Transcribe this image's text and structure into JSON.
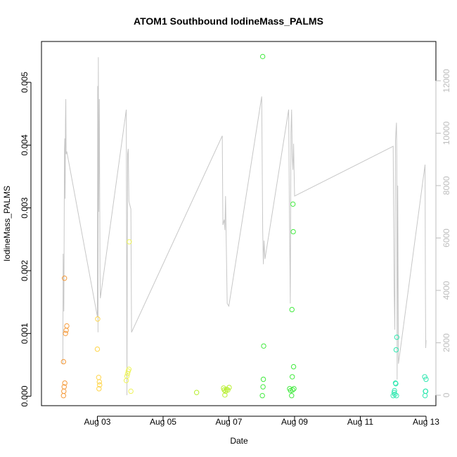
{
  "chart_data": {
    "type": "scatter",
    "title": "ATOM1 Southbound IodineMass_PALMS",
    "xlabel": "Date",
    "ylabel": "IodineMass_PALMS",
    "x_tick_labels": [
      "Aug 03",
      "Aug 05",
      "Aug 07",
      "Aug 09",
      "Aug 11",
      "Aug 13"
    ],
    "x_tick_values": [
      3,
      5,
      7,
      9,
      11,
      13
    ],
    "y_tick_labels": [
      "0.000",
      "0.001",
      "0.002",
      "0.003",
      "0.004",
      "0.005"
    ],
    "y_tick_values": [
      0,
      0.001,
      0.002,
      0.003,
      0.004,
      0.005
    ],
    "right_axis_tick_labels": [
      "0",
      "2000",
      "4000",
      "6000",
      "8000",
      "10000",
      "12000"
    ],
    "right_axis_tick_values": [
      0,
      2000,
      4000,
      6000,
      8000,
      10000,
      12000
    ],
    "xlim": [
      1.3,
      13.3
    ],
    "ylim": [
      -0.00015,
      0.00565
    ],
    "right_ylim": [
      -400,
      13500
    ],
    "grid": false,
    "series": [
      {
        "color": "#f59a3a",
        "points": [
          {
            "x": 1.97,
            "y": 1e-05
          },
          {
            "x": 1.98,
            "y": 8e-05
          },
          {
            "x": 1.99,
            "y": 0.00015
          },
          {
            "x": 2.01,
            "y": 0.00021
          },
          {
            "x": 1.97,
            "y": 0.00055
          },
          {
            "x": 2.0,
            "y": 0.00188
          },
          {
            "x": 2.03,
            "y": 0.001
          },
          {
            "x": 2.05,
            "y": 0.00105
          },
          {
            "x": 2.07,
            "y": 0.00112
          }
        ]
      },
      {
        "color": "#ffd54a",
        "points": [
          {
            "x": 3.01,
            "y": 0.00123
          },
          {
            "x": 3.0,
            "y": 0.00075
          },
          {
            "x": 3.04,
            "y": 0.0003
          },
          {
            "x": 3.06,
            "y": 0.00023
          },
          {
            "x": 3.07,
            "y": 0.00018
          },
          {
            "x": 3.05,
            "y": 0.00012
          }
        ]
      },
      {
        "color": "#eef45a",
        "points": [
          {
            "x": 3.88,
            "y": 0.00025
          },
          {
            "x": 3.9,
            "y": 0.00032
          },
          {
            "x": 3.92,
            "y": 0.00036
          },
          {
            "x": 3.94,
            "y": 0.0004
          },
          {
            "x": 3.96,
            "y": 0.00043
          },
          {
            "x": 3.97,
            "y": 0.00246
          },
          {
            "x": 4.02,
            "y": 8e-05
          }
        ]
      },
      {
        "color": "#b8ef32",
        "points": [
          {
            "x": 6.02,
            "y": 6e-05
          },
          {
            "x": 6.84,
            "y": 0.00013
          },
          {
            "x": 6.86,
            "y": 0.0001
          },
          {
            "x": 6.88,
            "y": 2e-05
          },
          {
            "x": 6.9,
            "y": 8e-05
          },
          {
            "x": 6.93,
            "y": 0.00011
          },
          {
            "x": 6.97,
            "y": 0.0001
          },
          {
            "x": 7.01,
            "y": 0.00014
          }
        ]
      },
      {
        "color": "#42ea3f",
        "points": [
          {
            "x": 8.03,
            "y": 0.00541
          },
          {
            "x": 8.06,
            "y": 0.0008
          },
          {
            "x": 8.05,
            "y": 0.00027
          },
          {
            "x": 8.04,
            "y": 0.00015
          },
          {
            "x": 8.02,
            "y": 1e-05
          },
          {
            "x": 8.85,
            "y": 0.00012
          },
          {
            "x": 8.88,
            "y": 9e-05
          },
          {
            "x": 8.92,
            "y": 0.00138
          },
          {
            "x": 8.95,
            "y": 0.00306
          },
          {
            "x": 8.96,
            "y": 0.00262
          },
          {
            "x": 8.93,
            "y": 0.00031
          },
          {
            "x": 8.97,
            "y": 0.00047
          },
          {
            "x": 8.94,
            "y": 0.0001
          },
          {
            "x": 8.91,
            "y": 1e-05
          },
          {
            "x": 8.98,
            "y": 0.00012
          }
        ]
      },
      {
        "color": "#32e8b1",
        "points": [
          {
            "x": 12.0,
            "y": 1e-05
          },
          {
            "x": 12.03,
            "y": 6e-05
          },
          {
            "x": 12.04,
            "y": 9e-05
          },
          {
            "x": 12.07,
            "y": 0.00021
          },
          {
            "x": 12.08,
            "y": 0.0002
          },
          {
            "x": 12.09,
            "y": 0.00074
          },
          {
            "x": 12.11,
            "y": 0.00094
          },
          {
            "x": 12.1,
            "y": 1e-05
          },
          {
            "x": 12.05,
            "y": 3e-05
          },
          {
            "x": 12.96,
            "y": 0.00031
          },
          {
            "x": 12.98,
            "y": 8e-05
          },
          {
            "x": 13.0,
            "y": 0.00027
          },
          {
            "x": 12.99,
            "y": 8e-05
          },
          {
            "x": 12.97,
            "y": 1e-05
          }
        ]
      }
    ],
    "right_axis_line": {
      "color": "#c7c7c7",
      "points": [
        [
          1.95,
          1200
        ],
        [
          1.96,
          5400
        ],
        [
          1.98,
          3200
        ],
        [
          2.0,
          9400
        ],
        [
          2.01,
          9800
        ],
        [
          2.02,
          7500
        ],
        [
          2.03,
          10500
        ],
        [
          2.04,
          11300
        ],
        [
          2.05,
          9200
        ],
        [
          2.07,
          9300
        ],
        [
          3.0,
          3000
        ],
        [
          3.01,
          11800
        ],
        [
          3.02,
          2400
        ],
        [
          3.03,
          12900
        ],
        [
          3.04,
          7000
        ],
        [
          3.06,
          11300
        ],
        [
          3.08,
          4800
        ],
        [
          3.09,
          3700
        ],
        [
          3.88,
          10900
        ],
        [
          3.9,
          0
        ],
        [
          3.92,
          9200
        ],
        [
          3.94,
          9400
        ],
        [
          3.96,
          7400
        ],
        [
          4.02,
          7100
        ],
        [
          4.04,
          2400
        ],
        [
          6.8,
          9900
        ],
        [
          6.82,
          6500
        ],
        [
          6.86,
          6700
        ],
        [
          6.88,
          6300
        ],
        [
          6.9,
          7600
        ],
        [
          6.95,
          3500
        ],
        [
          7.0,
          3400
        ],
        [
          8.0,
          11400
        ],
        [
          8.03,
          6300
        ],
        [
          8.05,
          5000
        ],
        [
          8.07,
          5900
        ],
        [
          8.1,
          5200
        ],
        [
          8.82,
          10900
        ],
        [
          8.84,
          7500
        ],
        [
          8.87,
          3500
        ],
        [
          8.89,
          10000
        ],
        [
          8.91,
          10900
        ],
        [
          8.93,
          9100
        ],
        [
          8.95,
          8600
        ],
        [
          8.97,
          9600
        ],
        [
          9.0,
          7600
        ],
        [
          12.0,
          9500
        ],
        [
          12.03,
          4000
        ],
        [
          12.05,
          2500
        ],
        [
          12.07,
          9700
        ],
        [
          12.09,
          10200
        ],
        [
          12.1,
          10400
        ],
        [
          12.11,
          9100
        ],
        [
          12.12,
          600
        ],
        [
          12.14,
          8000
        ],
        [
          12.16,
          1200
        ],
        [
          12.97,
          8800
        ],
        [
          12.98,
          4200
        ],
        [
          12.99,
          1800
        ],
        [
          13.0,
          2100
        ]
      ]
    }
  }
}
